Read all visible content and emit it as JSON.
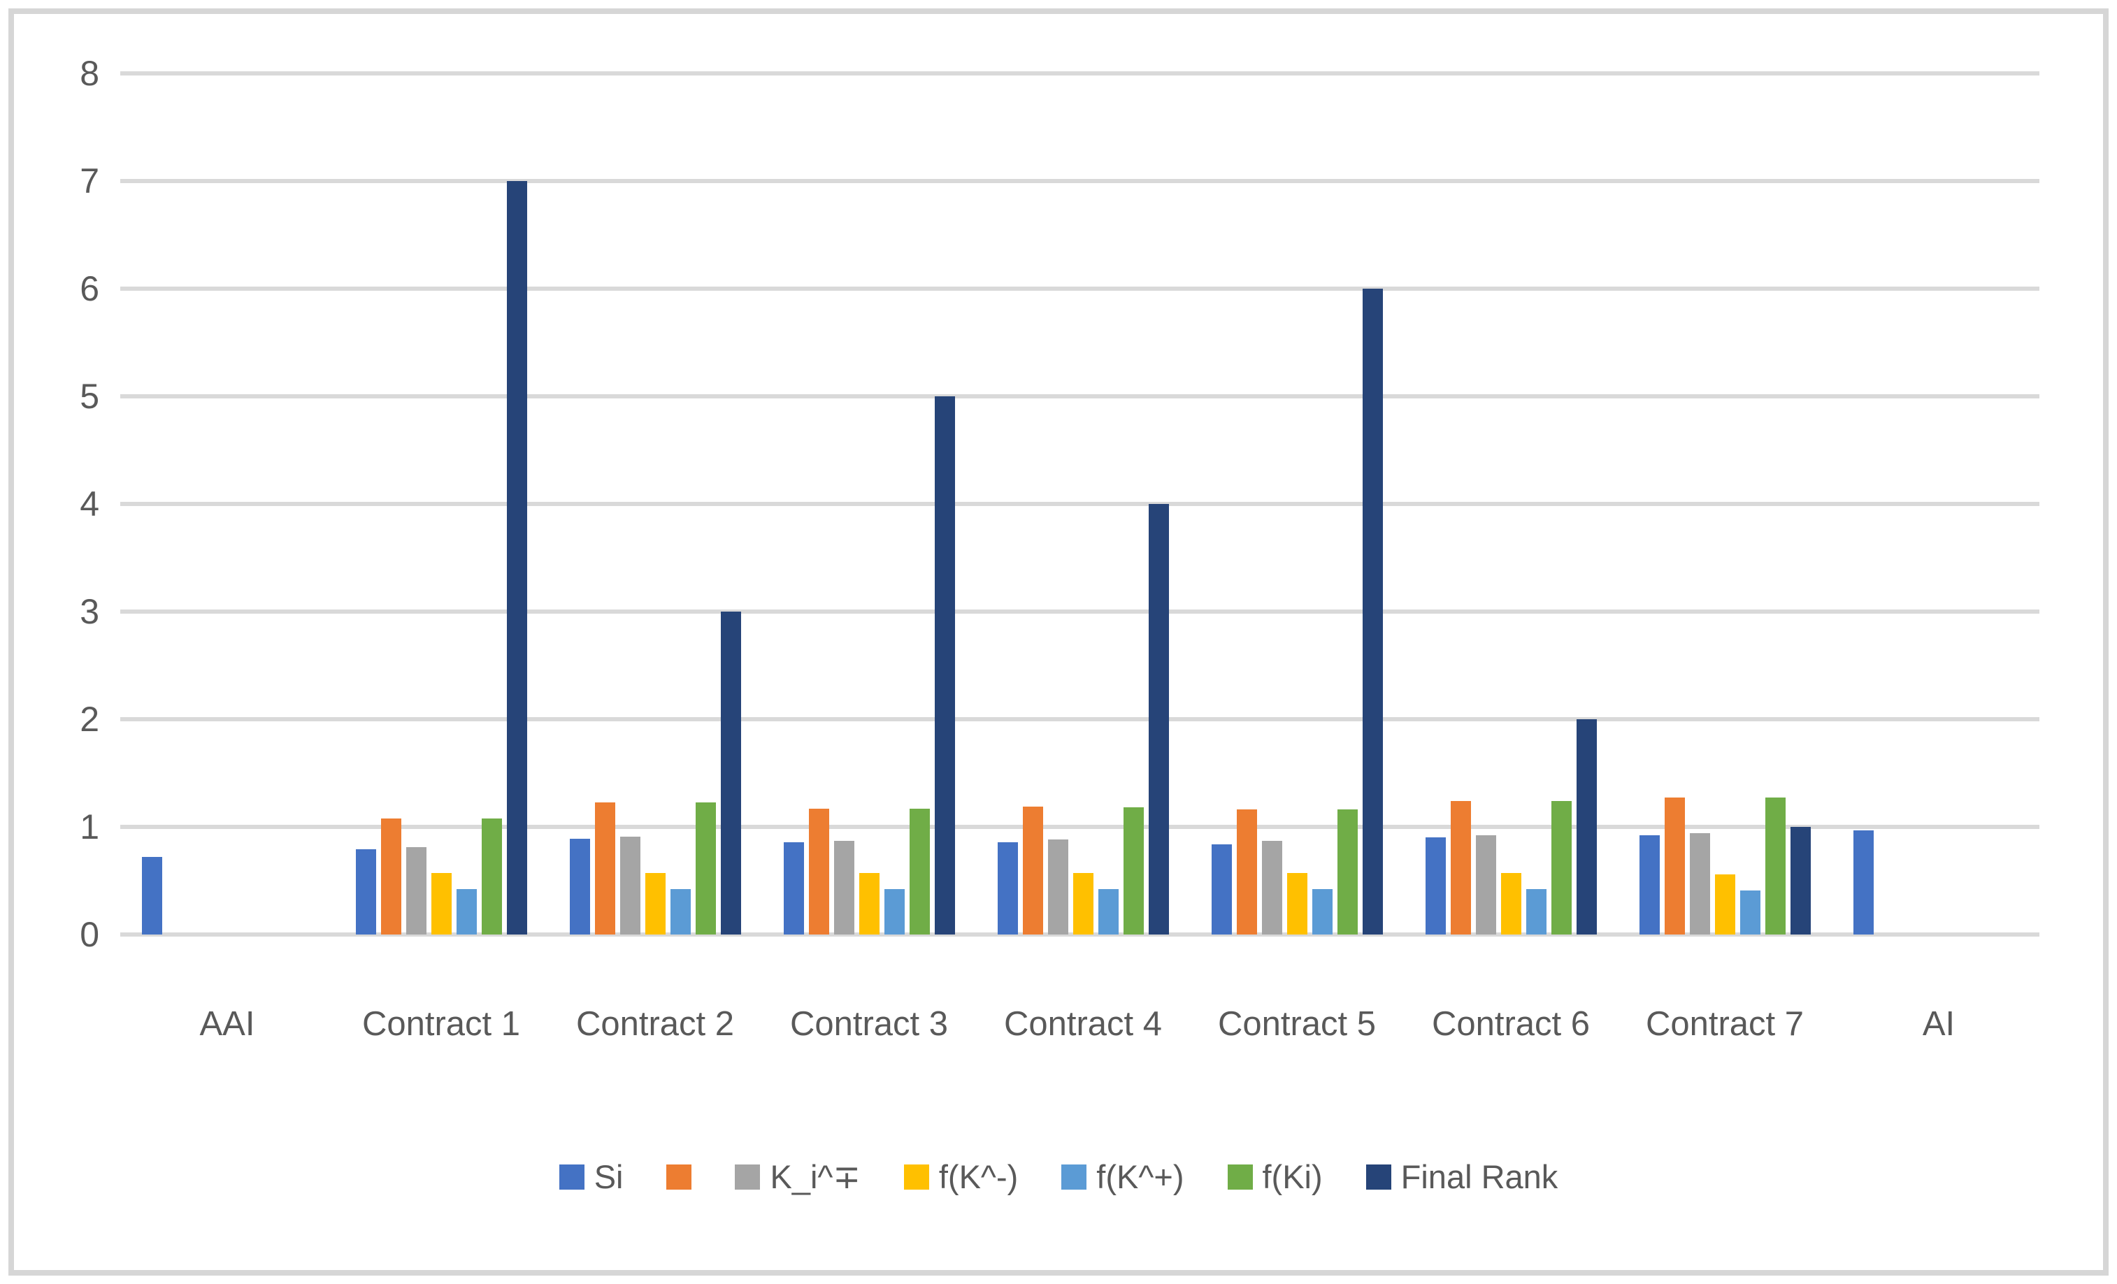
{
  "chart_data": {
    "type": "bar",
    "title": "",
    "xlabel": "",
    "ylabel": "",
    "categories": [
      "AAI",
      "Contract 1",
      "Contract 2",
      "Contract 3",
      "Contract 4",
      "Contract 5",
      "Contract 6",
      "Contract 7",
      "AI"
    ],
    "series": [
      {
        "name": "Si",
        "color": "#4472C4",
        "values": [
          0.72,
          0.79,
          0.89,
          0.86,
          0.86,
          0.84,
          0.9,
          0.92,
          0.97
        ]
      },
      {
        "name": "",
        "color": "#ED7D31",
        "values": [
          0,
          1.08,
          1.23,
          1.17,
          1.19,
          1.16,
          1.24,
          1.27,
          0
        ]
      },
      {
        "name": "K_i^∓",
        "color": "#A5A5A5",
        "values": [
          0,
          0.81,
          0.91,
          0.87,
          0.88,
          0.87,
          0.92,
          0.94,
          0
        ]
      },
      {
        "name": "f(K^-)",
        "color": "#FFC000",
        "values": [
          0,
          0.57,
          0.57,
          0.57,
          0.57,
          0.57,
          0.57,
          0.56,
          0
        ]
      },
      {
        "name": "f(K^+)",
        "color": "#5B9BD5",
        "values": [
          0,
          0.42,
          0.42,
          0.42,
          0.42,
          0.42,
          0.42,
          0.41,
          0
        ]
      },
      {
        "name": "f(Ki)",
        "color": "#70AD47",
        "values": [
          0,
          1.08,
          1.23,
          1.17,
          1.18,
          1.16,
          1.24,
          1.27,
          0
        ]
      },
      {
        "name": "Final Rank",
        "color": "#264478",
        "values": [
          0,
          7,
          3,
          5,
          4,
          6,
          2,
          1,
          0
        ]
      }
    ],
    "ylim": [
      0,
      8
    ],
    "yticks": [
      0,
      1,
      2,
      3,
      4,
      5,
      6,
      7,
      8
    ],
    "grid": "horizontal",
    "legend_position": "bottom"
  },
  "colors": {
    "gridline": "#D9D9D9",
    "frame_border": "#D6D6D6",
    "axis_text": "#595959",
    "background": "#FFFFFF"
  }
}
